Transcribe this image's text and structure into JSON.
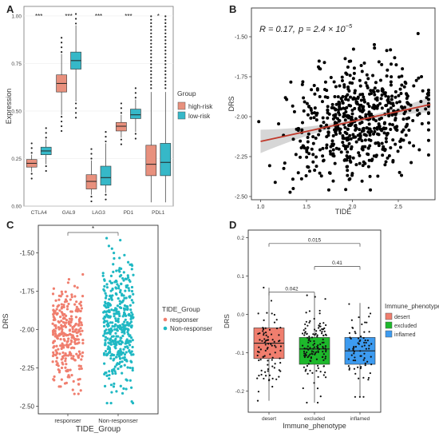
{
  "chart_data": [
    {
      "panel_label": "A",
      "type": "boxplot",
      "ylabel": "Expression",
      "ylim": [
        0,
        1.05
      ],
      "yticks": [
        "0.00",
        "0.25",
        "0.50",
        "0.75",
        "1.00"
      ],
      "categories": [
        "CTLA4",
        "GAL9",
        "LAG3",
        "PD1",
        "PDL1"
      ],
      "significance": [
        "***",
        "***",
        "***",
        "***",
        "*"
      ],
      "legend": {
        "title": "Group",
        "position": "right",
        "entries": [
          "high-risk",
          "low-risk"
        ]
      },
      "colors": {
        "high-risk": "#E8907D",
        "low-risk": "#36B8C8"
      },
      "series": [
        {
          "name": "high-risk",
          "stats": [
            {
              "min": 0.18,
              "q1": 0.205,
              "median": 0.225,
              "q3": 0.245,
              "max": 0.27
            },
            {
              "min": 0.48,
              "q1": 0.6,
              "median": 0.645,
              "q3": 0.69,
              "max": 0.8
            },
            {
              "min": 0.06,
              "q1": 0.09,
              "median": 0.13,
              "q3": 0.165,
              "max": 0.24
            },
            {
              "min": 0.36,
              "q1": 0.395,
              "median": 0.42,
              "q3": 0.44,
              "max": 0.48
            },
            {
              "min": 0.02,
              "q1": 0.16,
              "median": 0.22,
              "q3": 0.32,
              "max": 0.6
            }
          ]
        },
        {
          "name": "low-risk",
          "stats": [
            {
              "min": 0.22,
              "q1": 0.27,
              "median": 0.29,
              "q3": 0.31,
              "max": 0.35
            },
            {
              "min": 0.55,
              "q1": 0.72,
              "median": 0.765,
              "q3": 0.81,
              "max": 0.95
            },
            {
              "min": 0.07,
              "q1": 0.11,
              "median": 0.15,
              "q3": 0.21,
              "max": 0.33
            },
            {
              "min": 0.39,
              "q1": 0.46,
              "median": 0.48,
              "q3": 0.51,
              "max": 0.56
            },
            {
              "min": 0.02,
              "q1": 0.16,
              "median": 0.23,
              "q3": 0.33,
              "max": 0.6
            }
          ]
        }
      ]
    },
    {
      "panel_label": "B",
      "type": "scatter",
      "xlabel": "TIDE",
      "ylabel": "DRS",
      "xlim": [
        0.9,
        2.9
      ],
      "ylim": [
        -2.52,
        -1.32
      ],
      "xticks": [
        "1.0",
        "1.5",
        "2.0",
        "2.5"
      ],
      "yticks": [
        "-1.50",
        "-1.75",
        "-2.00",
        "-2.25",
        "-2.50"
      ],
      "annotation": {
        "R": "R = 0.17,",
        "p_prefix": "p = 2.4 × 10",
        "p_exp": "−5"
      },
      "regression": {
        "intercept": -2.28,
        "slope": 0.125
      },
      "colors": {
        "point": "#000000",
        "line": "#C0392B",
        "band": "#BBBBBB"
      }
    },
    {
      "panel_label": "C",
      "type": "jitter",
      "xlabel": "TIDE_Group",
      "ylabel": "DRS",
      "ylim": [
        -2.55,
        -1.32
      ],
      "yticks": [
        "-1.50",
        "-1.75",
        "-2.00",
        "-2.25",
        "-2.50"
      ],
      "categories": [
        "responser",
        "Non-responser"
      ],
      "significance": "*",
      "legend": {
        "title": "TIDE_Group",
        "position": "right",
        "entries": [
          "responser",
          "Non-responser"
        ]
      },
      "colors": {
        "responser": "#F07E6E",
        "Non-responser": "#1FB8C3"
      },
      "series": [
        {
          "name": "responser",
          "n": 300,
          "center": -2.04,
          "spread": 0.16,
          "range": [
            -2.42,
            -1.5
          ]
        },
        {
          "name": "Non-responser",
          "n": 420,
          "center": -1.99,
          "spread": 0.2,
          "range": [
            -2.48,
            -1.4
          ]
        }
      ]
    },
    {
      "panel_label": "D",
      "type": "boxplot",
      "xlabel": "Immune_phenotype",
      "ylabel": "DRS",
      "ylim": [
        -0.255,
        0.22
      ],
      "yticks": [
        "0.2",
        "0.1",
        "0.0",
        "-0.1",
        "-0.2"
      ],
      "categories": [
        "desert",
        "excluded",
        "inflamed"
      ],
      "comparisons": [
        {
          "from": 0,
          "to": 1,
          "p": "0.042"
        },
        {
          "from": 1,
          "to": 2,
          "p": "0.41"
        },
        {
          "from": 0,
          "to": 2,
          "p": "0.015"
        }
      ],
      "legend": {
        "title": "Immune_phenotype",
        "position": "right",
        "entries": [
          "desert",
          "excluded",
          "inflamed"
        ]
      },
      "colors": {
        "desert": "#F07E6E",
        "excluded": "#1DB82B",
        "inflamed": "#3D9BF0"
      },
      "stats": [
        {
          "min": -0.225,
          "q1": -0.115,
          "median": -0.075,
          "q3": -0.035,
          "max": 0.07
        },
        {
          "min": -0.23,
          "q1": -0.13,
          "median": -0.09,
          "q3": -0.06,
          "max": 0.05
        },
        {
          "min": -0.215,
          "q1": -0.13,
          "median": -0.095,
          "q3": -0.06,
          "max": 0.03
        }
      ]
    }
  ]
}
